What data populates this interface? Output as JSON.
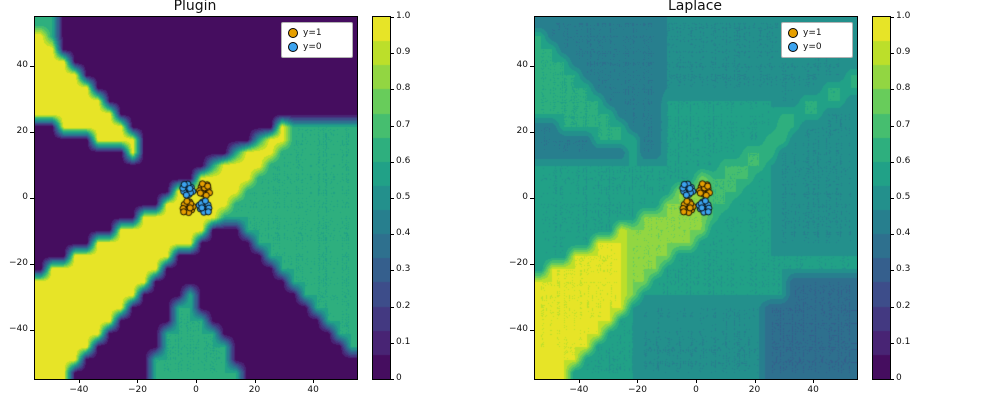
{
  "figure": {
    "background": "#ffffff"
  },
  "colormap": {
    "name": "viridis",
    "anchors": [
      "#440154",
      "#482878",
      "#3e4a89",
      "#31688e",
      "#26828e",
      "#1f9e89",
      "#35b779",
      "#6ece58",
      "#b5de2b",
      "#fde725"
    ]
  },
  "scatter": {
    "shared_across_plots": true,
    "series": [
      {
        "name": "y=1",
        "color": "#e69f00",
        "points": [
          [
            3.2,
            2.1
          ],
          [
            1.8,
            3.4
          ],
          [
            4.1,
            2.9
          ],
          [
            2.6,
            1.2
          ],
          [
            3.8,
            4.0
          ],
          [
            1.2,
            2.2
          ],
          [
            2.9,
            3.1
          ],
          [
            4.6,
            1.6
          ],
          [
            2.2,
            4.3
          ],
          [
            3.5,
            0.8
          ],
          [
            1.5,
            1.5
          ],
          [
            4.0,
            3.6
          ],
          [
            -2.8,
            -2.4
          ],
          [
            -1.5,
            -3.6
          ],
          [
            -4.0,
            -2.0
          ],
          [
            -2.2,
            -1.2
          ],
          [
            -3.6,
            -3.8
          ],
          [
            -1.0,
            -2.6
          ],
          [
            -2.5,
            -4.4
          ],
          [
            -4.4,
            -3.2
          ],
          [
            -1.8,
            -1.8
          ],
          [
            -3.1,
            -1.0
          ],
          [
            -4.2,
            -4.2
          ],
          [
            -2.0,
            -3.0
          ]
        ]
      },
      {
        "name": "y=0",
        "color": "#3da4f0",
        "points": [
          [
            -3.0,
            2.4
          ],
          [
            -1.6,
            3.2
          ],
          [
            -4.2,
            2.0
          ],
          [
            -2.4,
            1.1
          ],
          [
            -3.7,
            3.9
          ],
          [
            -1.1,
            2.0
          ],
          [
            -2.8,
            4.2
          ],
          [
            -4.5,
            3.0
          ],
          [
            -1.9,
            1.6
          ],
          [
            -3.3,
            0.9
          ],
          [
            -2.1,
            2.9
          ],
          [
            -4.0,
            4.1
          ],
          [
            2.9,
            -2.5
          ],
          [
            1.5,
            -3.3
          ],
          [
            4.1,
            -2.1
          ],
          [
            2.3,
            -1.2
          ],
          [
            3.6,
            -4.0
          ],
          [
            1.1,
            -2.2
          ],
          [
            2.7,
            -4.3
          ],
          [
            4.4,
            -3.1
          ],
          [
            1.8,
            -1.7
          ],
          [
            3.2,
            -0.9
          ],
          [
            2.0,
            -3.0
          ],
          [
            4.2,
            -4.2
          ]
        ]
      }
    ]
  },
  "chart_data": [
    {
      "type": "heatmap",
      "title": "Plugin",
      "xlim": [
        -55,
        55
      ],
      "ylim": [
        -55,
        55
      ],
      "zlim": [
        0,
        1
      ],
      "levels": 15,
      "xticks": [
        -40,
        -20,
        0,
        20,
        40
      ],
      "xtick_labels": [
        "−40",
        "−20",
        "0",
        "20",
        "40"
      ],
      "yticks": [
        40,
        20,
        0,
        -20,
        -40
      ],
      "ytick_labels": [
        "40",
        "20",
        "0",
        "−20",
        "−40"
      ],
      "colorbar_ticks": [
        0,
        0.1,
        0.2,
        0.3,
        0.4,
        0.5,
        0.6,
        0.7,
        0.8,
        0.9,
        1.0
      ],
      "colorbar_tick_labels": [
        "0",
        "0.1",
        "0.2",
        "0.3",
        "0.4",
        "0.5",
        "0.6",
        "0.7",
        "0.8",
        "0.9",
        "1.0"
      ],
      "legend": [
        {
          "label": "y=1"
        },
        {
          "label": "y=0"
        }
      ],
      "grid_encoding": "hex digit = p(y=1|x) * 15, rows top(y=55) to bottom(y=-55), cols left(x=-55) to right(x=55)",
      "grid": [
        "9900000000000000000000000000",
        "f900000000000000000000000000",
        "ff00000000000000000000000000",
        "fff0000000000000000000000000",
        "ffff000000000000000000000000",
        "fffff00000000000000000000000",
        "ffffff0000000000000000000000",
        "fffffff000000000000000000000",
        "00ffffff0000000000000f999999",
        "00000ffff00000000009ff999999",
        "00000000f000000009fff9999999",
        "0000000000000009ffff99999999",
        "00000000000000fffff999999999",
        "000000000000ffffff9999999999",
        "00000000000ffffff99999999999",
        "000000000fffffff999999999999",
        "0000000ffffffff0009999999999",
        "00000fffffffff00000999999999",
        "000fffffffff0000000099999999",
        "0ffffffffff00000000009999999",
        "ffffffffff000000000000999999",
        "fffffffff0000900000000099999",
        "ffffffff00009900000000009999",
        "fffffff000009990000000000999",
        "ffffff0000099999000000000099",
        "fffff00000099999900000000009",
        "ffff000000999999900000000000",
        "fff0000000999999990000000000"
      ]
    },
    {
      "type": "heatmap",
      "title": "Laplace",
      "xlim": [
        -55,
        55
      ],
      "ylim": [
        -55,
        55
      ],
      "zlim": [
        0,
        1
      ],
      "levels": 15,
      "xticks": [
        -40,
        -20,
        0,
        20,
        40
      ],
      "xtick_labels": [
        "−40",
        "−20",
        "0",
        "20",
        "40"
      ],
      "yticks": [
        40,
        20,
        0,
        -20,
        -40
      ],
      "ytick_labels": [
        "40",
        "20",
        "0",
        "−20",
        "−40"
      ],
      "colorbar_ticks": [
        0,
        0.1,
        0.2,
        0.3,
        0.4,
        0.5,
        0.6,
        0.7,
        0.8,
        0.9,
        1.0
      ],
      "colorbar_tick_labels": [
        "0",
        "0.1",
        "0.2",
        "0.3",
        "0.4",
        "0.5",
        "0.6",
        "0.7",
        "0.8",
        "0.9",
        "1.0"
      ],
      "legend": [
        {
          "label": "y=1"
        },
        {
          "label": "y=0"
        }
      ],
      "grid_encoding": "hex digit = p(y=1|x) * 15, rows top(y=55) to bottom(y=-55), cols left(x=-55) to right(x=55)",
      "grid": [
        "6666666666677777777777777777",
        "9666666666677777777777777777",
        "9966666666677777777777777777",
        "9996666666677777777777777777",
        "9999666666677777777777777779",
        "9999966666677777777777777999",
        "9999996666688888888887799997",
        "9999999666688888888889999777",
        "669999996668888888888a977777",
        "66666999966888888888aa777777",
        "666666669668888888aaa7777777",
        "8888888888888888aaaa87777777",
        "88888888888888caaaa887777777",
        "888888888888cccaaa8887777777",
        "88888888888ccccaa88887777777",
        "888888888cccccca888887777777",
        "8888888eccccccc8888887777777",
        "88888eeecccccc88888887777777",
        "888eeeeecccc8888888888888888",
        "8eeeeeeeccc88888888888888888",
        "eeeeeeeecc888888888888555555",
        "eeeeeeeec8888888888888555555",
        "eeeeeeee87777777777755555555",
        "eeeeeee887777777777755555555",
        "eeeeee8887777777777755555555",
        "eeeee88887777777777755555555",
        "ffee888887777777777755555555",
        "ffe8888887777777777755555555"
      ]
    }
  ]
}
